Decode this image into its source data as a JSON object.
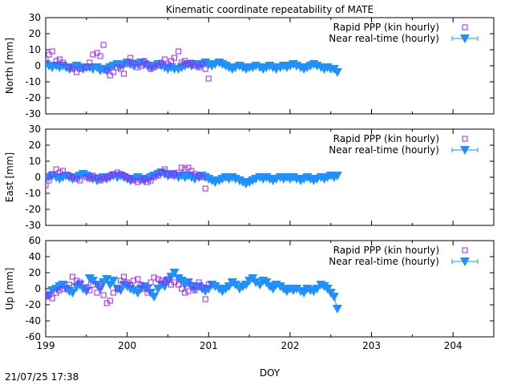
{
  "title": "Kinematic coordinate repeatability of MATE",
  "xlabel": "DOY",
  "timestamp": "21/07/25 17:38",
  "colors": {
    "rapid": "#a020f0",
    "nrt": "#1e90ff",
    "axis": "#000000"
  },
  "chart_data": [
    {
      "type": "scatter",
      "ylabel": "North [mm]",
      "xlim": [
        199,
        204.5
      ],
      "ylim": [
        -30,
        30
      ],
      "yticks": [
        -30,
        -20,
        -10,
        0,
        10,
        20,
        30
      ],
      "xticks": [],
      "series": [
        {
          "name": "Rapid PPP (kin hourly)",
          "marker": "open-square",
          "x": [
            199.0,
            199.04,
            199.08,
            199.13,
            199.17,
            199.21,
            199.29,
            199.33,
            199.38,
            199.42,
            199.5,
            199.54,
            199.58,
            199.63,
            199.67,
            199.71,
            199.75,
            199.79,
            199.83,
            199.88,
            199.92,
            199.96,
            200.0,
            200.04,
            200.08,
            200.13,
            200.17,
            200.21,
            200.25,
            200.29,
            200.33,
            200.38,
            200.42,
            200.46,
            200.5,
            200.54,
            200.58,
            200.63,
            200.67,
            200.71,
            200.75,
            200.79,
            200.83,
            200.88,
            200.92,
            200.96,
            201.0
          ],
          "y": [
            4,
            7,
            9,
            3,
            4,
            2,
            -1,
            -2,
            -4,
            -2,
            -1,
            2,
            7,
            8,
            6,
            13,
            -3,
            -6,
            -4,
            -1,
            -2,
            -5,
            1,
            5,
            2,
            -1,
            0,
            3,
            1,
            -2,
            -1,
            0,
            2,
            4,
            1,
            3,
            5,
            9,
            2,
            3,
            1,
            2,
            0,
            -1,
            1,
            -2,
            -8
          ]
        },
        {
          "name": "Near real-time (hourly)",
          "marker": "filled-down-triangle",
          "x": [
            199.0,
            199.04,
            199.08,
            199.13,
            199.17,
            199.21,
            199.25,
            199.29,
            199.33,
            199.38,
            199.42,
            199.46,
            199.5,
            199.54,
            199.58,
            199.63,
            199.67,
            199.71,
            199.75,
            199.79,
            199.83,
            199.88,
            199.92,
            199.96,
            200.0,
            200.04,
            200.08,
            200.13,
            200.17,
            200.21,
            200.25,
            200.29,
            200.33,
            200.38,
            200.42,
            200.46,
            200.5,
            200.54,
            200.58,
            200.63,
            200.67,
            200.71,
            200.75,
            200.79,
            200.83,
            200.88,
            200.92,
            200.96,
            201.0,
            201.04,
            201.08,
            201.13,
            201.17,
            201.21,
            201.25,
            201.29,
            201.33,
            201.38,
            201.42,
            201.46,
            201.5,
            201.54,
            201.58,
            201.63,
            201.67,
            201.71,
            201.75,
            201.79,
            201.83,
            201.88,
            201.92,
            201.96,
            202.0,
            202.04,
            202.08,
            202.13,
            202.17,
            202.21,
            202.25,
            202.29,
            202.33,
            202.38,
            202.42,
            202.46,
            202.5,
            202.54,
            202.58
          ],
          "y": [
            1,
            0,
            -1,
            0,
            -1,
            0,
            -1,
            -2,
            -1,
            0,
            -1,
            -2,
            -1,
            -1,
            -2,
            -1,
            -3,
            -2,
            -3,
            -1,
            0,
            1,
            0,
            1,
            2,
            1,
            0,
            1,
            2,
            1,
            0,
            -1,
            0,
            1,
            0,
            -1,
            -2,
            -1,
            -2,
            -2,
            -1,
            0,
            1,
            0,
            1,
            0,
            1,
            2,
            1,
            0,
            1,
            2,
            1,
            0,
            -1,
            -2,
            -1,
            0,
            -1,
            -2,
            -1,
            -1,
            0,
            -1,
            -2,
            -1,
            0,
            -1,
            -2,
            -1,
            0,
            -1,
            0,
            1,
            0,
            -1,
            -2,
            -1,
            0,
            1,
            0,
            -1,
            -2,
            -1,
            -2,
            -2,
            -4
          ]
        }
      ]
    },
    {
      "type": "scatter",
      "ylabel": "East [mm]",
      "xlim": [
        199,
        204.5
      ],
      "ylim": [
        -30,
        30
      ],
      "yticks": [
        -30,
        -20,
        -10,
        0,
        10,
        20,
        30
      ],
      "xticks": [],
      "series": [
        {
          "name": "Rapid PPP (kin hourly)",
          "marker": "open-square",
          "x": [
            199.0,
            199.04,
            199.08,
            199.13,
            199.17,
            199.21,
            199.29,
            199.33,
            199.38,
            199.42,
            199.5,
            199.54,
            199.58,
            199.63,
            199.67,
            199.71,
            199.75,
            199.79,
            199.83,
            199.88,
            199.92,
            199.96,
            200.0,
            200.04,
            200.08,
            200.13,
            200.17,
            200.21,
            200.25,
            200.29,
            200.33,
            200.38,
            200.42,
            200.46,
            200.5,
            200.54,
            200.58,
            200.63,
            200.67,
            200.71,
            200.75,
            200.79,
            200.83,
            200.88,
            200.92,
            200.96
          ],
          "y": [
            -5,
            -2,
            2,
            5,
            3,
            4,
            1,
            0,
            -1,
            -2,
            0,
            -1,
            1,
            0,
            -2,
            -1,
            0,
            1,
            2,
            3,
            2,
            1,
            0,
            -1,
            -2,
            -3,
            -2,
            -1,
            -3,
            -2,
            0,
            1,
            3,
            5,
            2,
            1,
            2,
            3,
            6,
            5,
            6,
            4,
            2,
            1,
            0,
            -7
          ]
        },
        {
          "name": "Near real-time (hourly)",
          "marker": "filled-down-triangle",
          "x": [
            199.0,
            199.04,
            199.08,
            199.13,
            199.17,
            199.21,
            199.25,
            199.29,
            199.33,
            199.38,
            199.42,
            199.46,
            199.5,
            199.54,
            199.58,
            199.63,
            199.67,
            199.71,
            199.75,
            199.79,
            199.83,
            199.88,
            199.92,
            199.96,
            200.0,
            200.04,
            200.08,
            200.13,
            200.17,
            200.21,
            200.25,
            200.29,
            200.33,
            200.38,
            200.42,
            200.46,
            200.5,
            200.54,
            200.58,
            200.63,
            200.67,
            200.71,
            200.75,
            200.79,
            200.83,
            200.88,
            200.92,
            200.96,
            201.0,
            201.04,
            201.08,
            201.13,
            201.17,
            201.21,
            201.25,
            201.29,
            201.33,
            201.38,
            201.42,
            201.46,
            201.5,
            201.54,
            201.58,
            201.63,
            201.67,
            201.71,
            201.75,
            201.79,
            201.83,
            201.88,
            201.92,
            201.96,
            202.0,
            202.04,
            202.08,
            202.13,
            202.17,
            202.21,
            202.25,
            202.29,
            202.33,
            202.38,
            202.42,
            202.46,
            202.5,
            202.54,
            202.58
          ],
          "y": [
            -1,
            0,
            1,
            0,
            -1,
            0,
            1,
            0,
            -1,
            0,
            1,
            2,
            1,
            0,
            -1,
            -2,
            -1,
            0,
            -1,
            0,
            1,
            0,
            1,
            0,
            -1,
            -2,
            -1,
            0,
            -1,
            -2,
            -1,
            0,
            1,
            2,
            3,
            2,
            1,
            2,
            1,
            0,
            1,
            0,
            1,
            0,
            -1,
            0,
            1,
            0,
            -1,
            -2,
            -3,
            -2,
            -1,
            0,
            -1,
            0,
            -1,
            -2,
            -3,
            -4,
            -3,
            -2,
            -1,
            0,
            -1,
            0,
            -1,
            -2,
            -1,
            0,
            -1,
            0,
            -1,
            0,
            -1,
            -2,
            -1,
            0,
            -1,
            -2,
            -1,
            0,
            -1,
            0,
            1,
            0,
            1
          ]
        }
      ]
    },
    {
      "type": "scatter",
      "ylabel": "Up [mm]",
      "xlim": [
        199,
        204.5
      ],
      "ylim": [
        -60,
        60
      ],
      "yticks": [
        -60,
        -40,
        -20,
        0,
        20,
        40,
        60
      ],
      "xticks": [
        199,
        200,
        201,
        202,
        203,
        204
      ],
      "series": [
        {
          "name": "Rapid PPP (kin hourly)",
          "marker": "open-square",
          "x": [
            199.0,
            199.04,
            199.08,
            199.13,
            199.17,
            199.21,
            199.29,
            199.33,
            199.38,
            199.42,
            199.5,
            199.54,
            199.58,
            199.63,
            199.67,
            199.71,
            199.75,
            199.79,
            199.83,
            199.88,
            199.92,
            199.96,
            200.0,
            200.04,
            200.08,
            200.13,
            200.17,
            200.21,
            200.25,
            200.29,
            200.33,
            200.38,
            200.42,
            200.46,
            200.5,
            200.54,
            200.58,
            200.63,
            200.67,
            200.71,
            200.75,
            200.79,
            200.83,
            200.88,
            200.92,
            200.96,
            201.0
          ],
          "y": [
            -10,
            -8,
            -12,
            -5,
            -2,
            0,
            5,
            15,
            10,
            8,
            2,
            -2,
            5,
            -5,
            3,
            -8,
            -18,
            -15,
            -5,
            0,
            10,
            15,
            8,
            5,
            10,
            12,
            5,
            0,
            -5,
            8,
            14,
            12,
            10,
            8,
            12,
            5,
            8,
            5,
            0,
            -5,
            -3,
            5,
            -2,
            8,
            2,
            -13,
            5
          ]
        },
        {
          "name": "Near real-time (hourly)",
          "marker": "filled-down-triangle",
          "x": [
            199.0,
            199.04,
            199.08,
            199.13,
            199.17,
            199.21,
            199.25,
            199.29,
            199.33,
            199.38,
            199.42,
            199.46,
            199.5,
            199.54,
            199.58,
            199.63,
            199.67,
            199.71,
            199.75,
            199.79,
            199.83,
            199.88,
            199.92,
            199.96,
            200.0,
            200.04,
            200.08,
            200.13,
            200.17,
            200.21,
            200.25,
            200.29,
            200.33,
            200.38,
            200.42,
            200.46,
            200.5,
            200.54,
            200.58,
            200.63,
            200.67,
            200.71,
            200.75,
            200.79,
            200.83,
            200.88,
            200.92,
            200.96,
            201.0,
            201.04,
            201.08,
            201.13,
            201.17,
            201.21,
            201.25,
            201.29,
            201.33,
            201.38,
            201.42,
            201.46,
            201.5,
            201.54,
            201.58,
            201.63,
            201.67,
            201.71,
            201.75,
            201.79,
            201.83,
            201.88,
            201.92,
            201.96,
            202.0,
            202.04,
            202.08,
            202.13,
            202.17,
            202.21,
            202.25,
            202.29,
            202.33,
            202.38,
            202.42,
            202.46,
            202.5,
            202.54,
            202.58
          ],
          "y": [
            -10,
            -8,
            -2,
            0,
            3,
            5,
            0,
            -3,
            -5,
            2,
            5,
            0,
            -3,
            13,
            10,
            5,
            0,
            8,
            12,
            5,
            10,
            0,
            -2,
            5,
            3,
            0,
            -2,
            -5,
            0,
            3,
            0,
            -5,
            -10,
            0,
            5,
            3,
            10,
            15,
            20,
            13,
            10,
            5,
            8,
            3,
            0,
            3,
            0,
            -3,
            0,
            5,
            3,
            0,
            -3,
            0,
            3,
            8,
            5,
            0,
            3,
            5,
            10,
            13,
            8,
            5,
            10,
            8,
            3,
            0,
            5,
            3,
            0,
            -3,
            0,
            -2,
            0,
            -3,
            -5,
            0,
            -2,
            -3,
            0,
            5,
            3,
            0,
            -5,
            -10,
            -25
          ]
        }
      ]
    }
  ]
}
